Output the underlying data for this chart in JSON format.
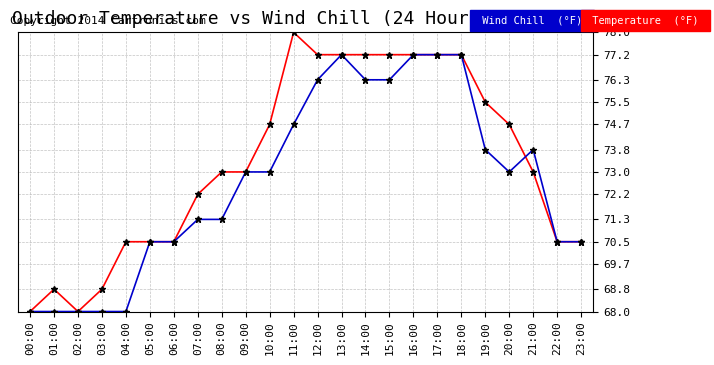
{
  "title": "Outdoor Temperature vs Wind Chill (24 Hours)  20140712",
  "copyright": "Copyright 2014 Cartronics.com",
  "background_color": "#ffffff",
  "plot_bg_color": "#ffffff",
  "grid_color": "#aaaaaa",
  "x_labels": [
    "00:00",
    "01:00",
    "02:00",
    "03:00",
    "04:00",
    "05:00",
    "06:00",
    "07:00",
    "08:00",
    "09:00",
    "10:00",
    "11:00",
    "12:00",
    "13:00",
    "14:00",
    "15:00",
    "16:00",
    "17:00",
    "18:00",
    "19:00",
    "20:00",
    "21:00",
    "22:00",
    "23:00"
  ],
  "ylim": [
    68.0,
    78.0
  ],
  "yticks": [
    68.0,
    68.8,
    69.7,
    70.5,
    71.3,
    72.2,
    73.0,
    73.8,
    74.7,
    75.5,
    76.3,
    77.2,
    78.0
  ],
  "temperature": [
    68.0,
    68.8,
    68.0,
    68.8,
    70.5,
    70.5,
    70.5,
    72.2,
    73.0,
    73.0,
    74.7,
    78.0,
    77.2,
    77.2,
    77.2,
    77.2,
    77.2,
    77.2,
    77.2,
    75.5,
    74.7,
    73.0,
    70.5,
    70.5
  ],
  "wind_chill": [
    68.0,
    68.0,
    68.0,
    68.0,
    68.0,
    70.5,
    70.5,
    71.3,
    71.3,
    73.0,
    73.0,
    74.7,
    76.3,
    77.2,
    76.3,
    76.3,
    77.2,
    77.2,
    77.2,
    73.8,
    73.0,
    73.8,
    70.5,
    70.5
  ],
  "temp_color": "#ff0000",
  "wind_color": "#0000cc",
  "marker": "*",
  "marker_color": "#000000",
  "legend_wind_bg": "#0000cc",
  "legend_temp_bg": "#ff0000",
  "legend_text_color": "#ffffff",
  "title_fontsize": 13,
  "copyright_fontsize": 8,
  "tick_fontsize": 8,
  "ytick_fontsize": 8
}
